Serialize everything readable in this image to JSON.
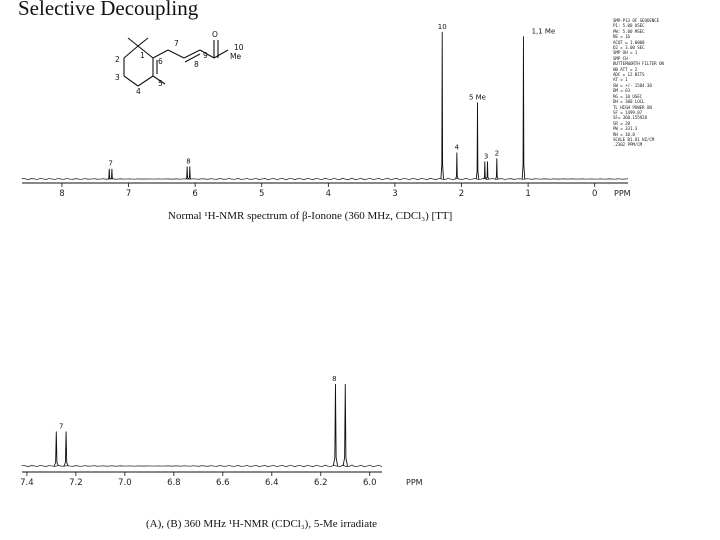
{
  "slide": {
    "title": "Selective Decoupling"
  },
  "structure": {
    "atom_labels": [
      "1",
      "2",
      "3",
      "4",
      "5",
      "6",
      "7",
      "8",
      "9",
      "10"
    ],
    "oxygen": "O",
    "methyl": "Me"
  },
  "instrument_params": [
    "SMP-P13 OF SEQUENCE",
    "P1:       5.00 USEC",
    "PW:       5.00 MSEC",
    "NS =      16",
    "ACQT =    1.0000",
    "D2 =      3.00 SEC",
    "SMP OH =  1",
    "SMP CH",
    "BUTTERWORTH FILTER ON",
    "HB ATT =  2",
    "ADC =     12 BITS",
    "AT  =     1",
    "SW =  +/- 1584.30",
    "DM  =     63",
    "RG  =     10 USEC",
    "DH  =     300 LOCL",
    "TL HIGH POWER ON",
    "SF  =     1499.87",
    "SF= 360.155928",
    "SR =      20",
    "PW =      331.3",
    "RH =      10.0",
    "SCALE   B1.81 HZ/CM",
    "         .2302 PPM/CM"
  ],
  "chart_data": [
    {
      "type": "line",
      "title": "Normal ¹H-NMR spectrum of β-Ionone (360 MHz, CDCl₃) [TT]",
      "xlabel": "PPM",
      "xlim": [
        8.6,
        -0.5
      ],
      "x_ticks": [
        "8",
        "7",
        "6",
        "5",
        "4",
        "3",
        "2",
        "1",
        "0"
      ],
      "x_tick_values": [
        8,
        7,
        6,
        5,
        4,
        3,
        2,
        1,
        0
      ],
      "grid": false,
      "peaks": [
        {
          "label": "7",
          "shifts": [
            7.29,
            7.25
          ],
          "height": 0.07
        },
        {
          "label": "8",
          "shifts": [
            6.12,
            6.08
          ],
          "height": 0.085
        },
        {
          "label": "10",
          "shifts": [
            2.29
          ],
          "height": 1.0
        },
        {
          "label": "4",
          "shifts": [
            2.07
          ],
          "height": 0.18
        },
        {
          "label": "5 Me",
          "shifts": [
            1.76
          ],
          "height": 0.52
        },
        {
          "label": "3",
          "shifts": [
            1.65,
            1.61
          ],
          "height": 0.12
        },
        {
          "label": "2",
          "shifts": [
            1.47
          ],
          "height": 0.14
        },
        {
          "label": "1,1 Me",
          "shifts": [
            1.07
          ],
          "height": 0.97
        }
      ]
    },
    {
      "type": "line",
      "title": "(A), (B) 360 MHz ¹H-NMR (CDCl₃), 5-Me irradiate",
      "xlabel": "PPM",
      "xlim": [
        7.42,
        5.95
      ],
      "x_ticks": [
        "7.4",
        "7.2",
        "7.0",
        "6.8",
        "6.6",
        "6.4",
        "6.2",
        "6.0"
      ],
      "x_tick_values": [
        7.4,
        7.2,
        7.0,
        6.8,
        6.6,
        6.4,
        6.2,
        6.0
      ],
      "grid": false,
      "peaks": [
        {
          "label": "7",
          "shifts": [
            7.28,
            7.24
          ],
          "height": 0.42
        },
        {
          "label": "8",
          "shifts": [
            6.14,
            6.1
          ],
          "height": 1.0
        }
      ]
    }
  ]
}
